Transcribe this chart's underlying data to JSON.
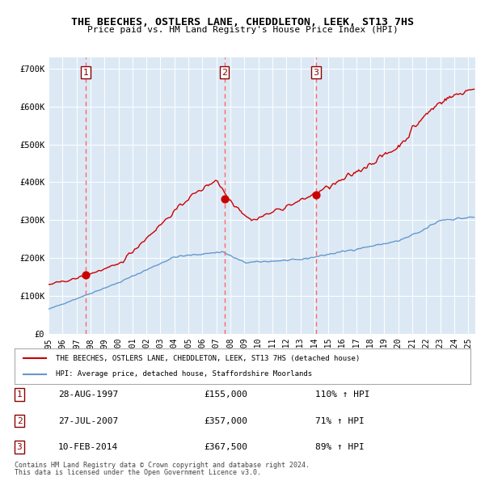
{
  "title": "THE BEECHES, OSTLERS LANE, CHEDDLETON, LEEK, ST13 7HS",
  "subtitle": "Price paid vs. HM Land Registry's House Price Index (HPI)",
  "bg_color": "#dce9f5",
  "plot_bg_color": "#dce9f5",
  "red_line_color": "#cc0000",
  "blue_line_color": "#6699cc",
  "vline_color": "#ff6666",
  "marker_color": "#cc0000",
  "transactions": [
    {
      "num": 1,
      "date": "28-AUG-1997",
      "price": 155000,
      "year": 1997.65,
      "pct": "110%",
      "dir": "↑"
    },
    {
      "num": 2,
      "date": "27-JUL-2007",
      "price": 357000,
      "year": 2007.57,
      "pct": "71%",
      "dir": "↑"
    },
    {
      "num": 3,
      "date": "10-FEB-2014",
      "price": 367500,
      "year": 2014.12,
      "pct": "89%",
      "dir": "↑"
    }
  ],
  "ylim": [
    0,
    730000
  ],
  "xlim_start": 1995.0,
  "xlim_end": 2025.5,
  "yticks": [
    0,
    100000,
    200000,
    300000,
    400000,
    500000,
    600000,
    700000
  ],
  "ytick_labels": [
    "£0",
    "£100K",
    "£200K",
    "£300K",
    "£400K",
    "£500K",
    "£600K",
    "£700K"
  ],
  "xticks": [
    1995,
    1996,
    1997,
    1998,
    1999,
    2000,
    2001,
    2002,
    2003,
    2004,
    2005,
    2006,
    2007,
    2008,
    2009,
    2010,
    2011,
    2012,
    2013,
    2014,
    2015,
    2016,
    2017,
    2018,
    2019,
    2020,
    2021,
    2022,
    2023,
    2024,
    2025
  ],
  "legend_red_label": "THE BEECHES, OSTLERS LANE, CHEDDLETON, LEEK, ST13 7HS (detached house)",
  "legend_blue_label": "HPI: Average price, detached house, Staffordshire Moorlands",
  "footer1": "Contains HM Land Registry data © Crown copyright and database right 2024.",
  "footer2": "This data is licensed under the Open Government Licence v3.0."
}
